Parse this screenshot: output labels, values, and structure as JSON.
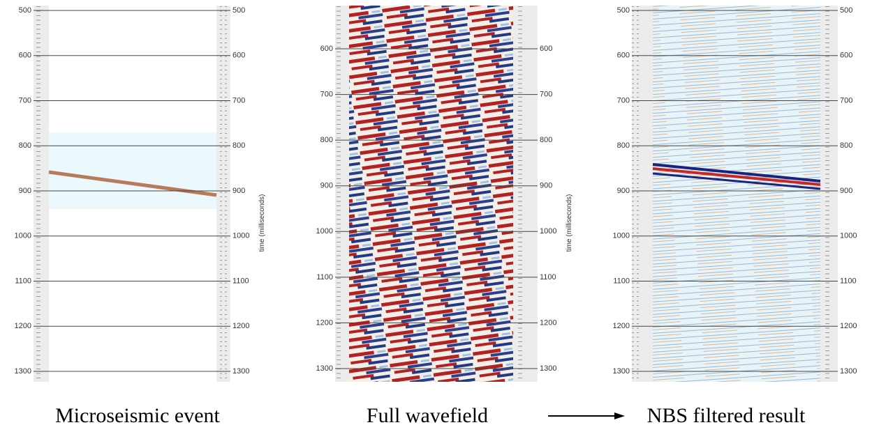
{
  "axis_label": "time (milliseconds)",
  "panels": [
    {
      "caption": "Microseismic event",
      "ticks": [
        500,
        600,
        700,
        800,
        900,
        1000,
        1100,
        1200,
        1300
      ],
      "axis_label_shown": true
    },
    {
      "caption": "Full wavefield",
      "ticks": [
        600,
        700,
        800,
        900,
        1000,
        1100,
        1200,
        1300
      ],
      "axis_label_shown": true
    },
    {
      "caption": "NBS filtered result",
      "ticks": [
        500,
        600,
        700,
        800,
        900,
        1000,
        1100,
        1200,
        1300
      ],
      "axis_label_shown": false
    }
  ]
}
